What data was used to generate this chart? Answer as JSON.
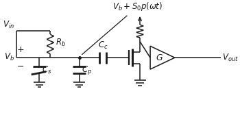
{
  "bg_color": "#ffffff",
  "text_color": "#1a1a1a",
  "line_color": "#1a1a1a",
  "annotation_text": "$V_b + S_0 p(\\omega t)$",
  "label_Vin": "$V_{in}$",
  "label_Vb": "$V_b$",
  "label_Rb": "$R_b$",
  "label_Cs": "$C_s$",
  "label_Cp": "$C_p$",
  "label_Cc": "$C_c$",
  "label_G": "$G$",
  "label_Vout": "$V_{out}$",
  "figsize": [
    3.5,
    1.81
  ],
  "dpi": 100
}
